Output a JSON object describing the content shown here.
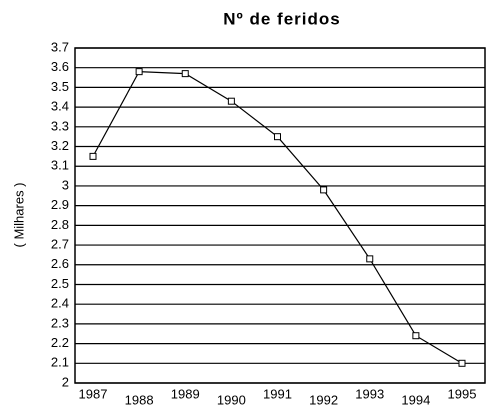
{
  "chart_data": {
    "type": "line",
    "title": "Nº de feridos",
    "y_label": "( Milhares )",
    "categories": [
      "1987",
      "1988",
      "1989",
      "1990",
      "1991",
      "1992",
      "1993",
      "1994",
      "1995"
    ],
    "series": [
      {
        "color": "#000000",
        "values": [
          3.15,
          3.58,
          3.57,
          3.43,
          3.25,
          2.98,
          2.63,
          2.24,
          2.1
        ]
      }
    ],
    "ylim": [
      2,
      3.7
    ],
    "yticks": [
      2,
      2.1,
      2.2,
      2.3,
      2.4,
      2.5,
      2.6,
      2.7,
      2.8,
      2.9,
      3,
      3.1,
      3.2,
      3.3,
      3.4,
      3.5,
      3.6,
      3.7
    ],
    "grid": true
  }
}
